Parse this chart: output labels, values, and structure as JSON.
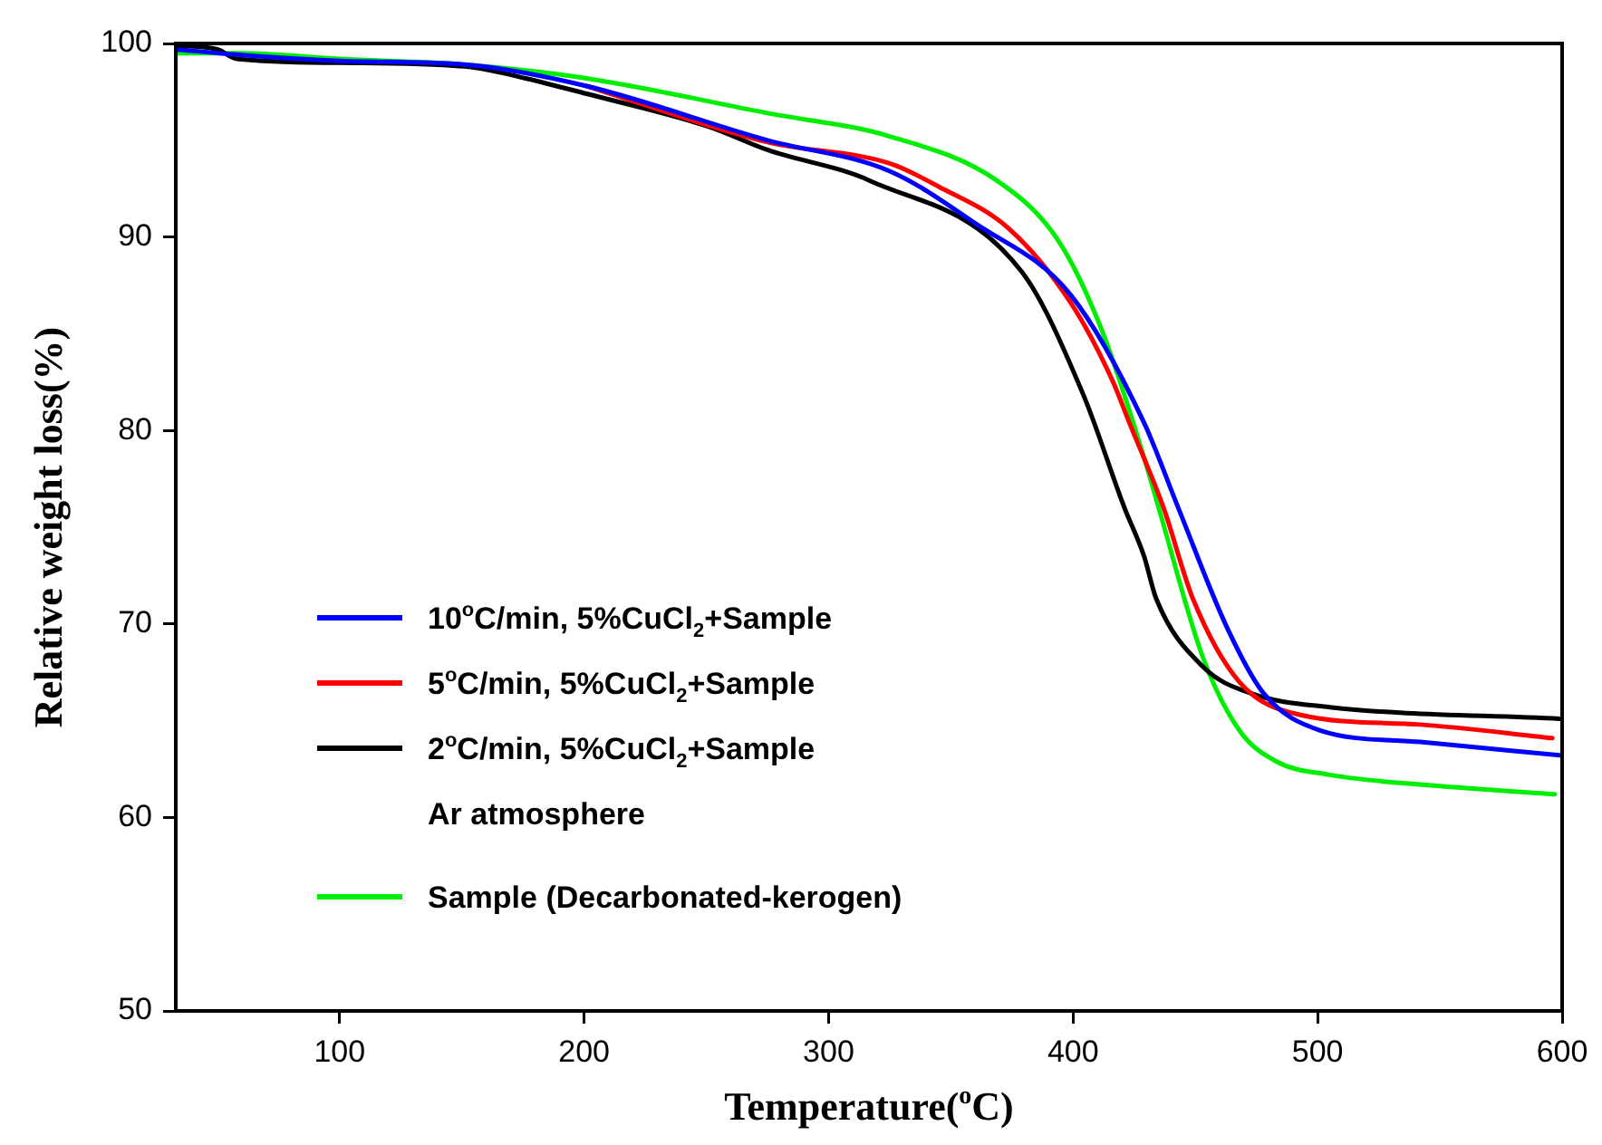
{
  "chart_data": {
    "type": "line",
    "xlabel": "Temperature($^{o}$C)",
    "ylabel": "Relative weight loss(%)",
    "xlim": [
      33,
      600
    ],
    "ylim": [
      50,
      100
    ],
    "xticks": [
      100,
      200,
      300,
      400,
      500,
      600
    ],
    "yticks": [
      50,
      60,
      70,
      80,
      90,
      100
    ],
    "grid": false,
    "legend": "bottom left",
    "marker": "none",
    "line_style": "solid",
    "annotations": [
      "Ar atmosphere"
    ],
    "series": [
      {
        "name": "10$^{o}$C/min, 5%CuCl$_{2}$+Sample",
        "color": "#0000ff",
        "x": [
          33,
          60,
          100,
          152,
          201,
          275,
          325,
          360,
          399,
          429,
          443,
          463,
          478,
          501,
          542,
          600
        ],
        "values": [
          99.7,
          99.4,
          99.1,
          98.9,
          97.8,
          95.0,
          93.4,
          90.7,
          87.0,
          80.4,
          76.0,
          69.8,
          66.4,
          64.5,
          63.9,
          63.2
        ]
      },
      {
        "name": "5$^{o}$C/min, 5%CuCl$_{2}$+Sample",
        "color": "#ff0000",
        "x": [
          201,
          275,
          325,
          345,
          374,
          399,
          416,
          423,
          437,
          449,
          468,
          493,
          542,
          596
        ],
        "values": [
          97.8,
          94.9,
          93.8,
          92.6,
          90.4,
          86.6,
          82.6,
          80.4,
          76.0,
          71.3,
          67.0,
          65.3,
          64.8,
          64.1
        ]
      },
      {
        "name": "2$^{o}$C/min, 5%CuCl$_{2}$+Sample",
        "color": "#000000",
        "x": [
          33,
          50,
          58,
          100,
          152,
          176,
          201,
          251,
          275,
          317,
          379,
          404,
          421,
          429,
          434,
          453,
          473,
          505,
          599
        ],
        "values": [
          99.9,
          99.7,
          99.2,
          99.0,
          98.8,
          98.2,
          97.4,
          95.7,
          94.5,
          92.9,
          88.2,
          81.9,
          76.0,
          73.5,
          71.3,
          67.8,
          66.4,
          65.7,
          65.1
        ]
      },
      {
        "name": "Sample (Decarbonated-kerogen)",
        "color": "#00ee00",
        "x": [
          33,
          60,
          100,
          152,
          201,
          275,
          325,
          369,
          394,
          412,
          429,
          435,
          453,
          468,
          483,
          505,
          542,
          597
        ],
        "values": [
          99.5,
          99.5,
          99.2,
          98.9,
          98.2,
          96.4,
          95.2,
          92.9,
          89.8,
          85.1,
          78.6,
          76.0,
          68.3,
          64.5,
          62.9,
          62.2,
          61.7,
          61.2
        ]
      }
    ]
  }
}
